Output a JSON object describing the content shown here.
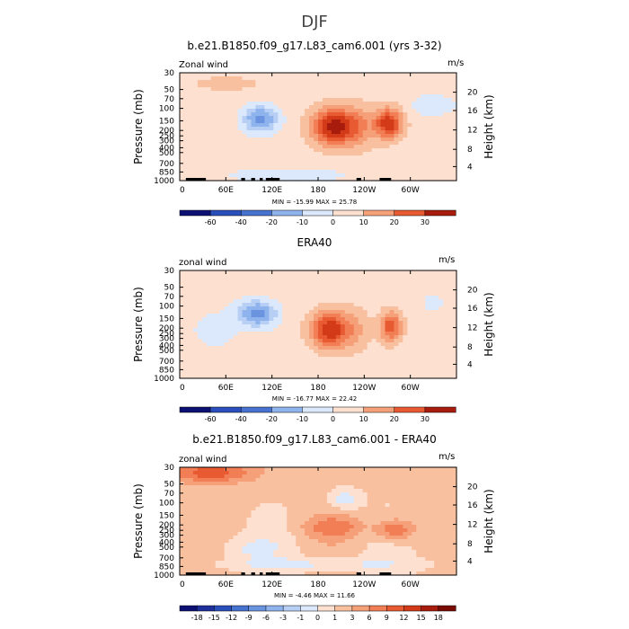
{
  "page_title": "DJF",
  "chart_data": [
    {
      "type": "heatmap",
      "title": "b.e21.B1850.f09_g17.L83_cam6.001 (yrs 3-32)",
      "left_label": "Zonal wind",
      "units": "m/s",
      "ylabel": "Pressure (mb)",
      "ylabel_right": "Height (km)",
      "x_ticks": [
        "0",
        "60E",
        "120E",
        "180",
        "120W",
        "60W"
      ],
      "y_ticks": [
        "30",
        "50",
        "70",
        "100",
        "150",
        "200",
        "250",
        "300",
        "400",
        "500",
        "700",
        "850",
        "1000"
      ],
      "y_ticks_right": [
        "20",
        "16",
        "12",
        "8",
        "4"
      ],
      "stats": "MIN = -15.99   MAX =  25.78",
      "min": -15.99,
      "max": 25.78,
      "colorbar_labels": [
        "-60",
        "-40",
        "-20",
        "-10",
        "0",
        "10",
        "20",
        "30"
      ],
      "features": [
        {
          "lon": 200,
          "p": 180,
          "value": 25.78
        },
        {
          "lon": 270,
          "p": 160,
          "value": 22
        },
        {
          "lon": 105,
          "p": 140,
          "value": -15.99
        }
      ]
    },
    {
      "type": "heatmap",
      "title": "ERA40",
      "left_label": "zonal wind",
      "units": "m/s",
      "ylabel": "Pressure (mb)",
      "ylabel_right": "Height (km)",
      "x_ticks": [
        "0",
        "60E",
        "120E",
        "180",
        "120W",
        "60W"
      ],
      "y_ticks": [
        "30",
        "50",
        "70",
        "100",
        "150",
        "200",
        "250",
        "300",
        "400",
        "500",
        "700",
        "850",
        "1000"
      ],
      "y_ticks_right": [
        "20",
        "16",
        "12",
        "8",
        "4"
      ],
      "stats": "MIN = -16.77   MAX =  22.42",
      "min": -16.77,
      "max": 22.42,
      "colorbar_labels": [
        "-60",
        "-40",
        "-20",
        "-10",
        "0",
        "10",
        "20",
        "30"
      ],
      "features": [
        {
          "lon": 195,
          "p": 180,
          "value": 22.42
        },
        {
          "lon": 275,
          "p": 170,
          "value": 18
        },
        {
          "lon": 100,
          "p": 150,
          "value": -16.77
        }
      ]
    },
    {
      "type": "heatmap",
      "title": "b.e21.B1850.f09_g17.L83_cam6.001 - ERA40",
      "left_label": "zonal wind",
      "units": "m/s",
      "ylabel": "Pressure (mb)",
      "ylabel_right": "Height (km)",
      "x_ticks": [
        "0",
        "60E",
        "120E",
        "180",
        "120W",
        "60W"
      ],
      "y_ticks": [
        "30",
        "50",
        "70",
        "100",
        "150",
        "200",
        "250",
        "300",
        "400",
        "500",
        "700",
        "850",
        "1000"
      ],
      "y_ticks_right": [
        "20",
        "16",
        "12",
        "8",
        "4"
      ],
      "stats": "MIN = -4.46   MAX =  11.66",
      "min": -4.46,
      "max": 11.66,
      "colorbar_labels": [
        "-18",
        "-15",
        "-12",
        "-9",
        "-6",
        "-3",
        "-1",
        "0",
        "1",
        "3",
        "6",
        "9",
        "12",
        "15",
        "18"
      ],
      "features": [
        {
          "lon": 30,
          "p": 40,
          "value": 11.66
        },
        {
          "lon": 275,
          "p": 200,
          "value": 8
        },
        {
          "lon": 215,
          "p": 80,
          "value": -4.46
        }
      ]
    }
  ]
}
